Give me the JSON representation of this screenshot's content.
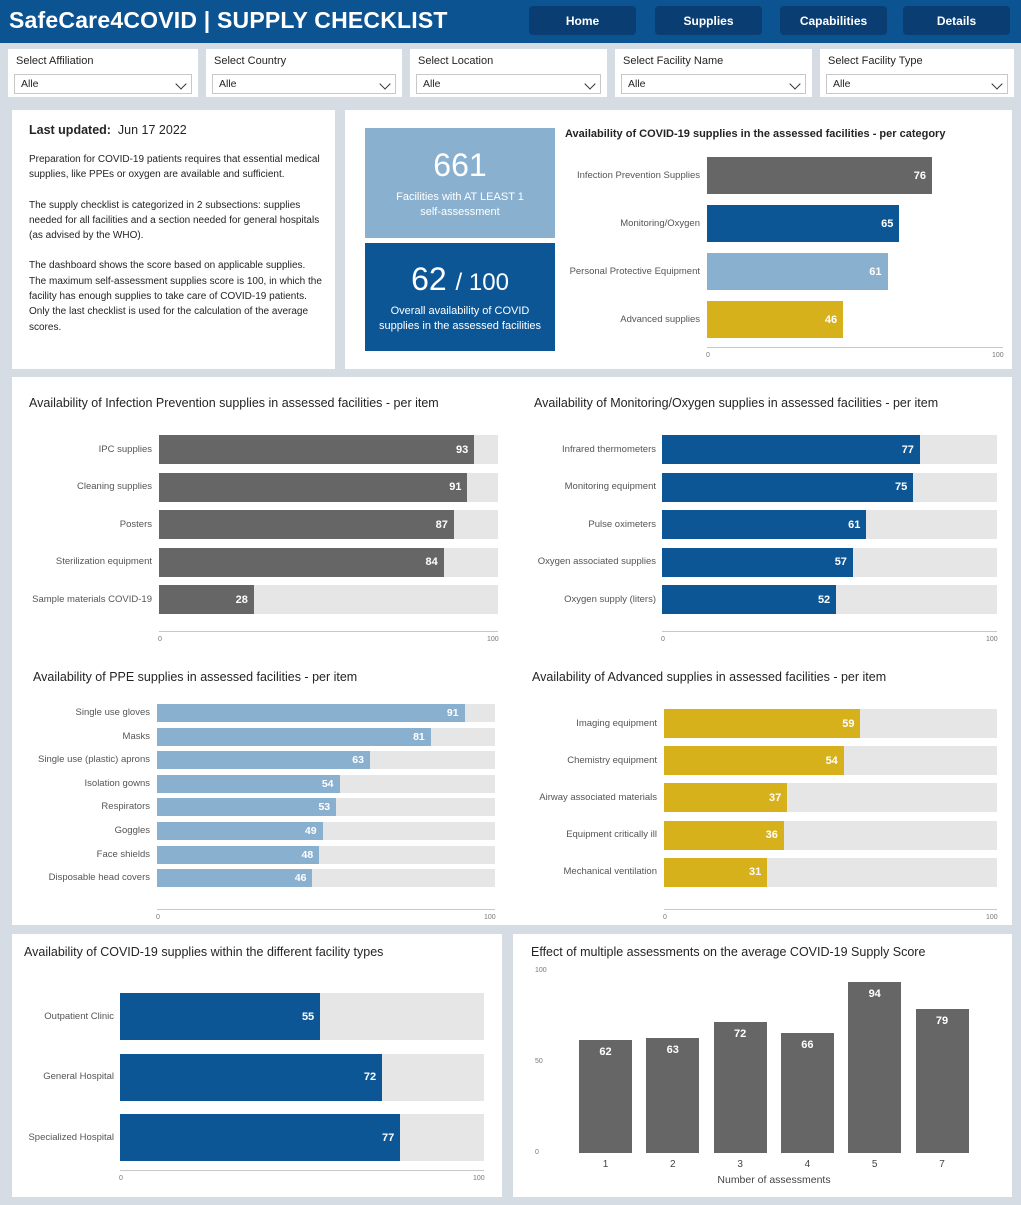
{
  "header": {
    "title": "SafeCare4COVID | SUPPLY CHECKLIST",
    "nav": [
      "Home",
      "Supplies",
      "Capabilities",
      "Details"
    ]
  },
  "filters": [
    {
      "label": "Select Affiliation",
      "value": "Alle"
    },
    {
      "label": "Select Country",
      "value": "Alle"
    },
    {
      "label": "Select Location",
      "value": "Alle"
    },
    {
      "label": "Select Facility Name",
      "value": "Alle"
    },
    {
      "label": "Select Facility Type",
      "value": "Alle"
    }
  ],
  "info": {
    "last_updated_label": "Last updated:",
    "last_updated_value": "Jun 17 2022",
    "p1": "Preparation for COVID-19 patients requires that essential medical supplies, like PPEs or oxygen are available and sufficient.",
    "p2": "The supply checklist is categorized in 2 subsections: supplies needed for all facilities and a section needed for general hospitals (as advised by the WHO).",
    "p3": "The dashboard shows the score based on applicable supplies. The maximum self-assessment supplies score is 100, in which the facility has enough supplies to take care of COVID-19 patients. Only the last checklist is used for the calculation of the average scores."
  },
  "kpi": {
    "facilities_value": "661",
    "facilities_label": "Facilities with AT LEAST 1 self-assessment",
    "score_value": "62",
    "score_max": "/ 100",
    "score_label": "Overall availability of COVID supplies in the assessed facilities"
  },
  "colors": {
    "header": "#0c5392",
    "nav_button": "#0a3e72",
    "infection": "#666666",
    "monitoring": "#0d5696",
    "ppe": "#8ab0d0",
    "advanced": "#d6b11c",
    "track": "#e6e6e6"
  },
  "chart_data": [
    {
      "id": "category",
      "type": "bar",
      "orientation": "horizontal",
      "title": "Availability of COVID-19 supplies in the assessed facilities - per category",
      "categories": [
        "Infection Prevention Supplies",
        "Monitoring/Oxygen",
        "Personal Protective Equipment",
        "Advanced supplies"
      ],
      "values": [
        76,
        65,
        61,
        46
      ],
      "colors": [
        "#666666",
        "#0d5696",
        "#8ab0d0",
        "#d6b11c"
      ],
      "xlim": [
        0,
        100
      ],
      "ticks": [
        "0",
        "100"
      ]
    },
    {
      "id": "infection",
      "type": "bar",
      "orientation": "horizontal",
      "title": "Availability of Infection Prevention supplies in assessed facilities - per item",
      "categories": [
        "IPC supplies",
        "Cleaning supplies",
        "Posters",
        "Sterilization equipment",
        "Sample materials COVID-19"
      ],
      "values": [
        93,
        91,
        87,
        84,
        28
      ],
      "color": "#666666",
      "xlim": [
        0,
        100
      ],
      "ticks": [
        "0",
        "100"
      ]
    },
    {
      "id": "monitoring",
      "type": "bar",
      "orientation": "horizontal",
      "title": "Availability of Monitoring/Oxygen supplies in assessed facilities - per item",
      "categories": [
        "Infrared thermometers",
        "Monitoring equipment",
        "Pulse oximeters",
        "Oxygen associated supplies",
        "Oxygen supply (liters)"
      ],
      "values": [
        77,
        75,
        61,
        57,
        52
      ],
      "color": "#0d5696",
      "xlim": [
        0,
        100
      ],
      "ticks": [
        "0",
        "100"
      ]
    },
    {
      "id": "ppe",
      "type": "bar",
      "orientation": "horizontal",
      "title": "Availability of PPE supplies in assessed facilities - per item",
      "categories": [
        "Single use gloves",
        "Masks",
        "Single use (plastic) aprons",
        "Isolation gowns",
        "Respirators",
        "Goggles",
        "Face shields",
        "Disposable head covers"
      ],
      "values": [
        91,
        81,
        63,
        54,
        53,
        49,
        48,
        46
      ],
      "color": "#8ab0d0",
      "xlim": [
        0,
        100
      ],
      "ticks": [
        "0",
        "100"
      ]
    },
    {
      "id": "advanced",
      "type": "bar",
      "orientation": "horizontal",
      "title": "Availability of Advanced supplies in assessed facilities - per item",
      "categories": [
        "Imaging equipment",
        "Chemistry equipment",
        "Airway associated materials",
        "Equipment critically ill",
        "Mechanical ventilation"
      ],
      "values": [
        59,
        54,
        37,
        36,
        31
      ],
      "color": "#d6b11c",
      "xlim": [
        0,
        100
      ],
      "ticks": [
        "0",
        "100"
      ]
    },
    {
      "id": "facility",
      "type": "bar",
      "orientation": "horizontal",
      "title": "Availability of COVID-19 supplies within the different facility types",
      "categories": [
        "Outpatient Clinic",
        "General Hospital",
        "Specialized Hospital"
      ],
      "values": [
        55,
        72,
        77
      ],
      "color": "#0d5696",
      "xlim": [
        0,
        100
      ],
      "ticks": [
        "0",
        "100"
      ]
    },
    {
      "id": "assessments",
      "type": "bar",
      "orientation": "vertical",
      "title": "Effect of multiple assessments on the average COVID-19 Supply Score",
      "categories": [
        "1",
        "2",
        "3",
        "4",
        "5",
        "7"
      ],
      "values": [
        62,
        63,
        72,
        66,
        94,
        79
      ],
      "color": "#666666",
      "xlabel": "Number of assessments",
      "ylim": [
        0,
        100
      ],
      "yticks": [
        "0",
        "50",
        "100"
      ]
    }
  ]
}
